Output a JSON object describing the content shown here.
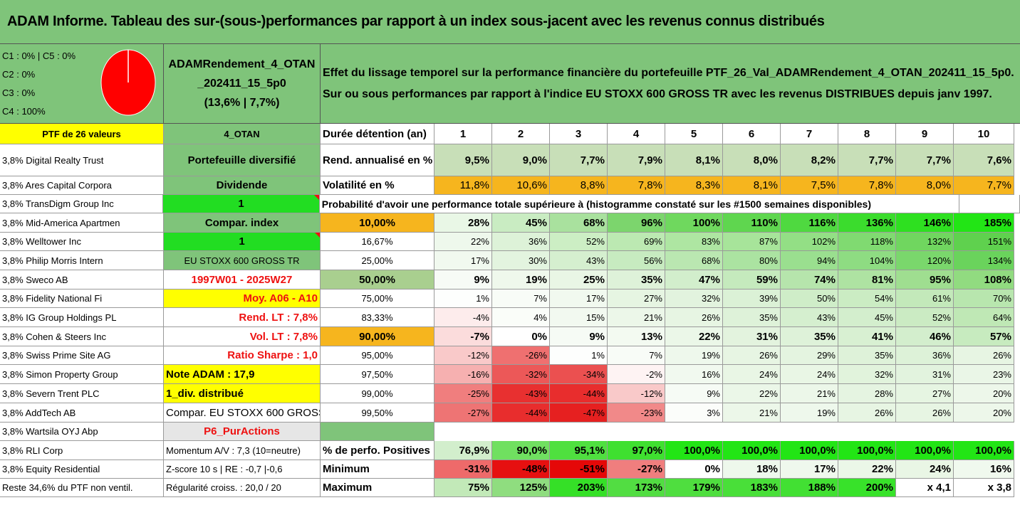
{
  "title": "ADAM Informe. Tableau des sur-(sous-)performances par rapport à un index sous-jacent avec les revenus connus distribués",
  "legend": [
    "C1 : 0% | C5 : 0%",
    "C2 : 0%",
    "C3 : 0%",
    "C4 : 100%"
  ],
  "pie_color": "#ff0000",
  "portfolio_name": [
    "ADAMRendement_4_OTAN",
    "_202411_15_5p0",
    "(13,6% | 7,7%)"
  ],
  "description": [
    "Effet du lissage temporel sur la performance financière du portefeuille PTF_26_Val_ADAMRendement_4_OTAN_202411_15_5p0.",
    "Sur ou sous performances par rapport à l'indice EU STOXX 600 GROSS TR avec les revenus DISTRIBUES depuis janv 1997."
  ],
  "rows": [
    {
      "c0": {
        "t": "PTF de 26 valeurs",
        "bg": "#ffff00",
        "cls": "center bold"
      },
      "c1": {
        "t": "4_OTAN",
        "bg": "#7fc47a",
        "cls": "bold"
      },
      "c2": {
        "t": "Durée détention (an)",
        "bg": "#ffffff",
        "cls": "bold big"
      },
      "vals": [
        "1",
        "2",
        "3",
        "4",
        "5",
        "6",
        "7",
        "8",
        "9",
        "10"
      ],
      "vbg": [
        "#fff",
        "#fff",
        "#fff",
        "#fff",
        "#fff",
        "#fff",
        "#fff",
        "#fff",
        "#fff",
        "#fff"
      ],
      "vcls": "center bold big"
    },
    {
      "c0": {
        "t": "3,8% Digital Realty Trust"
      },
      "c1": {
        "t": "Portefeuille diversifié",
        "bg": "#7fc47a",
        "cls": "bold big"
      },
      "c2": {
        "t": "Rend. annualisé en %",
        "cls": "bold big"
      },
      "vals": [
        "9,5%",
        "9,0%",
        "7,7%",
        "7,9%",
        "8,1%",
        "8,0%",
        "8,2%",
        "7,7%",
        "7,7%",
        "7,6%"
      ],
      "vbg": [
        "#c8dfb8",
        "#c8dfb8",
        "#c8dfb8",
        "#c8dfb8",
        "#c8dfb8",
        "#c8dfb8",
        "#c8dfb8",
        "#c8dfb8",
        "#c8dfb8",
        "#c8dfb8"
      ],
      "vcls": "bold big"
    },
    {
      "c0": {
        "t": "3,8% Ares Capital Corpora"
      },
      "c1": {
        "t": "Dividende",
        "bg": "#7fc47a",
        "cls": "bold big"
      },
      "c2": {
        "t": "Volatilité en %",
        "cls": "bold big"
      },
      "vals": [
        "11,8%",
        "10,6%",
        "8,8%",
        "7,8%",
        "8,3%",
        "8,1%",
        "7,5%",
        "7,8%",
        "8,0%",
        "7,7%"
      ],
      "vbg": [
        "#f6b51e",
        "#f6b51e",
        "#f6b51e",
        "#f6b51e",
        "#f6b51e",
        "#f6b51e",
        "#f6b51e",
        "#f6b51e",
        "#f6b51e",
        "#f6b51e"
      ],
      "vcls": "big"
    },
    {
      "c0": {
        "t": "3,8% TransDigm Group Inc"
      },
      "c1": {
        "t": "1",
        "bg": "#22dd22",
        "cls": "bold big tri"
      },
      "prob": "Probabilité d'avoir une performance totale supérieure à (histogramme constaté sur les #1500 semaines disponibles)"
    },
    {
      "c0": {
        "t": "3,8% Mid-America Apartmen"
      },
      "c1": {
        "t": "Compar. index",
        "bg": "#7fc47a",
        "cls": "bold big"
      },
      "c2": {
        "t": "10,00%",
        "bg": "#f6b51e",
        "cls": "center bold big"
      },
      "vals": [
        "28%",
        "45%",
        "68%",
        "96%",
        "100%",
        "110%",
        "116%",
        "136%",
        "146%",
        "185%"
      ],
      "vbg": [
        "#e9f7e6",
        "#c9ecc2",
        "#a9e19e",
        "#7cd56d",
        "#6fd85e",
        "#5fd64f",
        "#4fd940",
        "#3bdc2d",
        "#2ee020",
        "#22e515"
      ],
      "vcls": "bold big"
    },
    {
      "c0": {
        "t": "3,8% Welltower Inc"
      },
      "c1": {
        "t": "1",
        "bg": "#22dd22",
        "cls": "bold big tri"
      },
      "c2": {
        "t": "16,67%",
        "cls": "center"
      },
      "vals": [
        "22%",
        "36%",
        "52%",
        "69%",
        "83%",
        "87%",
        "102%",
        "118%",
        "132%",
        "151%"
      ],
      "vbg": [
        "#eef8ec",
        "#ddf2d8",
        "#cceec4",
        "#bce9b2",
        "#aee6a2",
        "#a7e49a",
        "#93df85",
        "#80da71",
        "#70d65f",
        "#5fd14e"
      ],
      "vcls": ""
    },
    {
      "c0": {
        "t": "3,8% Philip Morris Intern"
      },
      "c1": {
        "t": "EU STOXX 600 GROSS TR",
        "bg": "#7fc47a",
        "cls": ""
      },
      "c2": {
        "t": "25,00%",
        "cls": "center"
      },
      "vals": [
        "17%",
        "30%",
        "43%",
        "56%",
        "68%",
        "80%",
        "94%",
        "104%",
        "120%",
        "134%"
      ],
      "vbg": [
        "#f1f9ef",
        "#e3f4df",
        "#d5efcf",
        "#c7ebc0",
        "#bae7b1",
        "#abe3a1",
        "#9adf8f",
        "#8edc82",
        "#7ad76c",
        "#6ad35c"
      ],
      "vcls": ""
    },
    {
      "c0": {
        "t": "3,8% Sweco AB"
      },
      "c1": {
        "t": "1997W01 - 2025W27",
        "bg": "#ffffff",
        "cls": "bold big red"
      },
      "c2": {
        "t": "50,00%",
        "bg": "#a9cf8f",
        "cls": "center bold big"
      },
      "vals": [
        "9%",
        "19%",
        "25%",
        "35%",
        "47%",
        "59%",
        "74%",
        "81%",
        "95%",
        "108%"
      ],
      "vbg": [
        "#f7fbf6",
        "#eff8ec",
        "#e9f6e5",
        "#def2d9",
        "#d2eecc",
        "#c5eabd",
        "#b6e5ac",
        "#aee3a2",
        "#9fde90",
        "#91db80"
      ],
      "vcls": "bold big"
    },
    {
      "c0": {
        "t": "3,8% Fidelity National Fi"
      },
      "c1": {
        "t": "Moy. A06 - A10",
        "bg": "#ffff00",
        "cls": "right bold big red"
      },
      "c2": {
        "t": "75,00%",
        "cls": "center"
      },
      "vals": [
        "1%",
        "7%",
        "17%",
        "27%",
        "32%",
        "39%",
        "50%",
        "54%",
        "61%",
        "70%"
      ],
      "vbg": [
        "#fdfefd",
        "#f8fcf7",
        "#f1f9ef",
        "#e6f5e2",
        "#e2f3de",
        "#dbf1d6",
        "#cfedc8",
        "#cbecc3",
        "#c3e9ba",
        "#b8e6ae"
      ],
      "vcls": ""
    },
    {
      "c0": {
        "t": "3,8% IG Group Holdings PL"
      },
      "c1": {
        "t": "Rend. LT : 7,8%",
        "bg": "#ffffff",
        "cls": "right bold big red"
      },
      "c2": {
        "t": "83,33%",
        "cls": "center"
      },
      "vals": [
        "-4%",
        "4%",
        "15%",
        "21%",
        "26%",
        "35%",
        "43%",
        "45%",
        "52%",
        "64%"
      ],
      "vbg": [
        "#fdecec",
        "#fafdf9",
        "#f2f9f0",
        "#ecf7e9",
        "#e7f5e3",
        "#def2d9",
        "#d5efcf",
        "#d3eecd",
        "#cbebc3",
        "#bfe8b5"
      ],
      "vcls": ""
    },
    {
      "c0": {
        "t": "3,8% Cohen & Steers Inc"
      },
      "c1": {
        "t": "Vol. LT : 7,8%",
        "bg": "#ffffff",
        "cls": "right bold big red"
      },
      "c2": {
        "t": "90,00%",
        "bg": "#f6b51e",
        "cls": "center bold big"
      },
      "vals": [
        "-7%",
        "0%",
        "9%",
        "13%",
        "22%",
        "31%",
        "35%",
        "41%",
        "46%",
        "57%"
      ],
      "vbg": [
        "#fbdcdc",
        "#ffffff",
        "#f6fbf5",
        "#f3faf1",
        "#ebf7e8",
        "#e3f3de",
        "#def2d9",
        "#d8f0d2",
        "#d3eecd",
        "#c7ebbf"
      ],
      "vcls": "bold big"
    },
    {
      "c0": {
        "t": "3,8% Swiss Prime Site AG"
      },
      "c1": {
        "t": "Ratio Sharpe : 1,0",
        "bg": "#ffffff",
        "cls": "right bold big red"
      },
      "c2": {
        "t": "95,00%",
        "cls": "center"
      },
      "vals": [
        "-12%",
        "-26%",
        "1%",
        "7%",
        "19%",
        "26%",
        "29%",
        "35%",
        "36%",
        "26%"
      ],
      "vbg": [
        "#f9c9c9",
        "#ef7070",
        "#fdfefd",
        "#f8fcf7",
        "#eef8ec",
        "#e7f5e3",
        "#e4f4e0",
        "#def2d9",
        "#ddf2d8",
        "#e7f5e3"
      ],
      "vcls": ""
    },
    {
      "c0": {
        "t": "3,8% Simon Property Group"
      },
      "c1": {
        "t": "Note ADAM : 17,9",
        "bg": "#ffff00",
        "cls": "left bold big"
      },
      "c2": {
        "t": "97,50%",
        "cls": "center"
      },
      "vals": [
        "-16%",
        "-32%",
        "-34%",
        "-2%",
        "16%",
        "24%",
        "24%",
        "32%",
        "31%",
        "23%"
      ],
      "vbg": [
        "#f6b0b0",
        "#ec5858",
        "#eb5050",
        "#fef3f3",
        "#f1f9ef",
        "#e9f6e5",
        "#e9f6e5",
        "#e1f3dc",
        "#e2f3de",
        "#eaf6e7"
      ],
      "vcls": ""
    },
    {
      "c0": {
        "t": "3,8% Severn Trent PLC"
      },
      "c1": {
        "t": "1_div. distribué",
        "bg": "#ffff00",
        "cls": "left bold big"
      },
      "c2": {
        "t": "99,00%",
        "cls": "center"
      },
      "vals": [
        "-25%",
        "-43%",
        "-44%",
        "-12%",
        "9%",
        "22%",
        "21%",
        "28%",
        "27%",
        "20%"
      ],
      "vbg": [
        "#f07e7e",
        "#e83030",
        "#e82d2d",
        "#f9c9c9",
        "#f6fbf5",
        "#ebf7e8",
        "#ecf7e9",
        "#e5f4e1",
        "#e6f5e2",
        "#edf7ea"
      ],
      "vcls": ""
    },
    {
      "c0": {
        "t": "3,8% AddTech AB"
      },
      "c1": {
        "t": "Compar. EU STOXX 600 GROSS TR",
        "bg": "#ffffff",
        "cls": "left big"
      },
      "c2": {
        "t": "99,50%",
        "cls": "center"
      },
      "vals": [
        "-27%",
        "-44%",
        "-47%",
        "-23%",
        "3%",
        "21%",
        "19%",
        "26%",
        "26%",
        "20%"
      ],
      "vbg": [
        "#ee7474",
        "#e82d2d",
        "#e62020",
        "#f18989",
        "#fbfdfa",
        "#ecf7e9",
        "#eef8ec",
        "#e7f5e3",
        "#e7f5e3",
        "#edf7ea"
      ],
      "vcls": ""
    },
    {
      "c0": {
        "t": "3,8% Wartsila OYJ Abp"
      },
      "c1": {
        "t": "P6_PurActions",
        "bg": "#e6e6e6",
        "cls": "bold big red"
      },
      "c2": {
        "t": "",
        "bg": "#7fc47a",
        "cls": ""
      },
      "blank": true
    },
    {
      "c0": {
        "t": "3,8% RLI Corp"
      },
      "c1": {
        "t": "Momentum A/V : 7,3 (10=neutre)",
        "bg": "#ffffff",
        "cls": "left"
      },
      "c2": {
        "t": "% de perfo. Positives",
        "cls": "bold big"
      },
      "vals": [
        "76,9%",
        "90,0%",
        "95,1%",
        "97,0%",
        "100,0%",
        "100,0%",
        "100,0%",
        "100,0%",
        "100,0%",
        "100,0%"
      ],
      "vbg": [
        "#d2eecc",
        "#70e060",
        "#4fe03f",
        "#3fe030",
        "#22e515",
        "#22e515",
        "#22e515",
        "#22e515",
        "#22e515",
        "#22e515"
      ],
      "vcls": "bold big"
    },
    {
      "c0": {
        "t": "3,8% Equity Residential"
      },
      "c1": {
        "t": "Z-score 10 s | RE : -0,7 |-0,6",
        "bg": "#ffffff",
        "cls": "left"
      },
      "c2": {
        "t": "Minimum",
        "cls": "bold big"
      },
      "vals": [
        "-31%",
        "-48%",
        "-51%",
        "-27%",
        "0%",
        "18%",
        "17%",
        "22%",
        "24%",
        "16%"
      ],
      "vbg": [
        "#ee6a6a",
        "#e61010",
        "#e50808",
        "#f07e7e",
        "#ffffff",
        "#eef8ec",
        "#eff8ed",
        "#ebf7e8",
        "#e9f6e5",
        "#f0f9ee"
      ],
      "vcls": "bold big"
    },
    {
      "c0": {
        "t": "Reste 34,6% du PTF non ventil."
      },
      "c1": {
        "t": "Régularité croiss. : 20,0 / 20",
        "bg": "#ffffff",
        "cls": "left"
      },
      "c2": {
        "t": "Maximum",
        "cls": "bold big"
      },
      "vals": [
        "75%",
        "125%",
        "203%",
        "173%",
        "179%",
        "183%",
        "188%",
        "200%",
        "x 4,1",
        "x 3,8"
      ],
      "vbg": [
        "#c2e9b8",
        "#8fdd7f",
        "#35e027",
        "#52dd42",
        "#4fde3f",
        "#49df39",
        "#42e033",
        "#38e22a",
        "#ffffff",
        "#ffffff"
      ],
      "vcls": "bold big"
    }
  ]
}
